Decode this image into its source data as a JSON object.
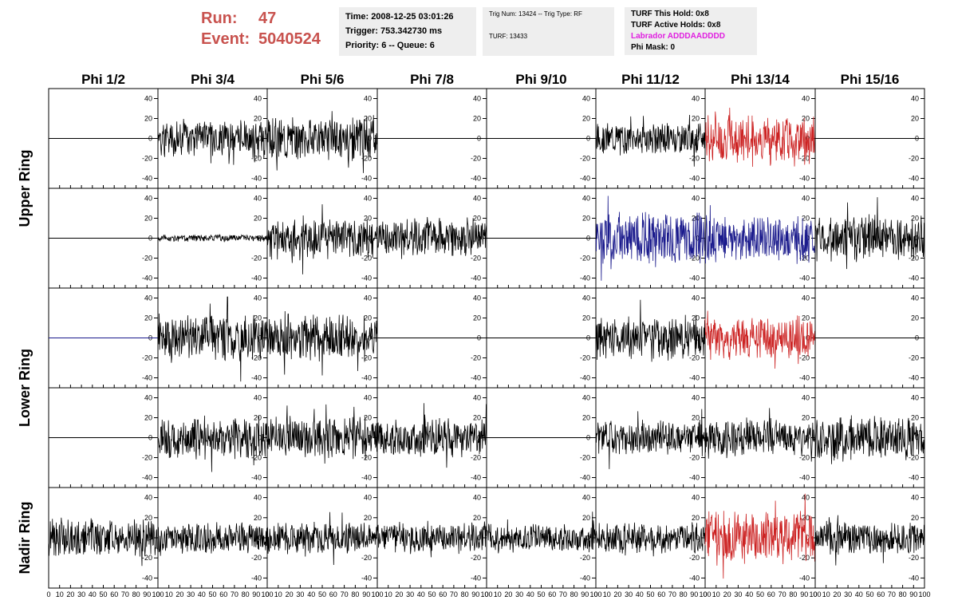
{
  "run_info": {
    "run_label": "Run:",
    "run_value": "47",
    "event_label": "Event:",
    "event_value": "5040524"
  },
  "time_panel": {
    "time": "Time: 2008-12-25 03:01:26",
    "trigger": "Trigger: 753.342730 ms",
    "priority": "Priority: 6 -- Queue: 6"
  },
  "trig_panel": {
    "trig": "Trig Num: 13424 -- Trig Type: RF",
    "turf": "TURF: 13433"
  },
  "turf_panel": {
    "this_hold": "TURF This Hold: 0x8",
    "active_holds": "TURF Active Holds: 0x8",
    "labrador": "Labrador ADDDAADDDD",
    "phi_mask": "Phi Mask: 0"
  },
  "colors": {
    "run_info": "#c8524e",
    "labrador": "#e020e0",
    "trace_black": "#000000",
    "trace_red": "#cc2222",
    "trace_blue": "#1a1a8c",
    "panel_bg": "#eeeeee"
  },
  "chart_data": {
    "type": "line",
    "columns": [
      "Phi 1/2",
      "Phi 3/4",
      "Phi 5/6",
      "Phi 7/8",
      "Phi 9/10",
      "Phi 11/12",
      "Phi 13/14",
      "Phi 15/16"
    ],
    "rows": [
      "Upper Ring",
      "Lower Ring",
      "Nadir Ring"
    ],
    "xlim": [
      0,
      100
    ],
    "ylim": [
      -50,
      50
    ],
    "x_ticks": [
      0,
      10,
      20,
      30,
      40,
      50,
      60,
      70,
      80,
      90,
      100
    ],
    "y_ticks": [
      -40,
      -20,
      0,
      20,
      40
    ],
    "panels": [
      {
        "row": 0,
        "col": 0,
        "color": "black",
        "amplitude": 0,
        "seed": 1
      },
      {
        "row": 0,
        "col": 1,
        "color": "black",
        "amplitude": 16,
        "seed": 2
      },
      {
        "row": 0,
        "col": 2,
        "color": "black",
        "amplitude": 18,
        "seed": 3
      },
      {
        "row": 0,
        "col": 3,
        "color": "black",
        "amplitude": 0,
        "seed": 4
      },
      {
        "row": 0,
        "col": 4,
        "color": "black",
        "amplitude": 0,
        "seed": 5
      },
      {
        "row": 0,
        "col": 5,
        "color": "black",
        "amplitude": 13,
        "seed": 6
      },
      {
        "row": 0,
        "col": 6,
        "color": "red",
        "amplitude": 20,
        "seed": 7
      },
      {
        "row": 0,
        "col": 7,
        "color": "black",
        "amplitude": 0,
        "seed": 8
      },
      {
        "row": 1,
        "col": 0,
        "color": "black",
        "amplitude": 0,
        "seed": 9
      },
      {
        "row": 1,
        "col": 1,
        "color": "black",
        "amplitude": 3,
        "seed": 10
      },
      {
        "row": 1,
        "col": 2,
        "color": "black",
        "amplitude": 18,
        "seed": 11
      },
      {
        "row": 1,
        "col": 3,
        "color": "black",
        "amplitude": 17,
        "seed": 12
      },
      {
        "row": 1,
        "col": 4,
        "color": "black",
        "amplitude": 0,
        "seed": 13
      },
      {
        "row": 1,
        "col": 5,
        "color": "blue",
        "amplitude": 22,
        "seed": 14
      },
      {
        "row": 1,
        "col": 6,
        "color": "blue",
        "amplitude": 20,
        "seed": 15
      },
      {
        "row": 1,
        "col": 7,
        "color": "black",
        "amplitude": 19,
        "seed": 16
      },
      {
        "row": 2,
        "col": 0,
        "color": "blue",
        "amplitude": 0,
        "seed": 17
      },
      {
        "row": 2,
        "col": 1,
        "color": "black",
        "amplitude": 20,
        "seed": 18
      },
      {
        "row": 2,
        "col": 2,
        "color": "black",
        "amplitude": 20,
        "seed": 19
      },
      {
        "row": 2,
        "col": 3,
        "color": "black",
        "amplitude": 0,
        "seed": 20
      },
      {
        "row": 2,
        "col": 4,
        "color": "black",
        "amplitude": 0,
        "seed": 21
      },
      {
        "row": 2,
        "col": 5,
        "color": "black",
        "amplitude": 18,
        "seed": 22
      },
      {
        "row": 2,
        "col": 6,
        "color": "red",
        "amplitude": 18,
        "seed": 23
      },
      {
        "row": 2,
        "col": 7,
        "color": "black",
        "amplitude": 0,
        "seed": 24
      },
      {
        "row": 3,
        "col": 0,
        "color": "black",
        "amplitude": 0,
        "seed": 25
      },
      {
        "row": 3,
        "col": 1,
        "color": "black",
        "amplitude": 18,
        "seed": 26
      },
      {
        "row": 3,
        "col": 2,
        "color": "black",
        "amplitude": 17,
        "seed": 27
      },
      {
        "row": 3,
        "col": 3,
        "color": "black",
        "amplitude": 16,
        "seed": 28
      },
      {
        "row": 3,
        "col": 4,
        "color": "black",
        "amplitude": 0,
        "seed": 29
      },
      {
        "row": 3,
        "col": 5,
        "color": "black",
        "amplitude": 16,
        "seed": 30
      },
      {
        "row": 3,
        "col": 6,
        "color": "black",
        "amplitude": 15,
        "seed": 31
      },
      {
        "row": 3,
        "col": 7,
        "color": "black",
        "amplitude": 18,
        "seed": 32
      },
      {
        "row": 4,
        "col": 0,
        "color": "black",
        "amplitude": 16,
        "seed": 33
      },
      {
        "row": 4,
        "col": 1,
        "color": "black",
        "amplitude": 13,
        "seed": 34
      },
      {
        "row": 4,
        "col": 2,
        "color": "black",
        "amplitude": 13,
        "seed": 35
      },
      {
        "row": 4,
        "col": 3,
        "color": "black",
        "amplitude": 13,
        "seed": 36
      },
      {
        "row": 4,
        "col": 4,
        "color": "black",
        "amplitude": 12,
        "seed": 37
      },
      {
        "row": 4,
        "col": 5,
        "color": "black",
        "amplitude": 13,
        "seed": 38
      },
      {
        "row": 4,
        "col": 6,
        "color": "red",
        "amplitude": 22,
        "seed": 39
      },
      {
        "row": 4,
        "col": 7,
        "color": "black",
        "amplitude": 14,
        "seed": 40
      }
    ]
  }
}
